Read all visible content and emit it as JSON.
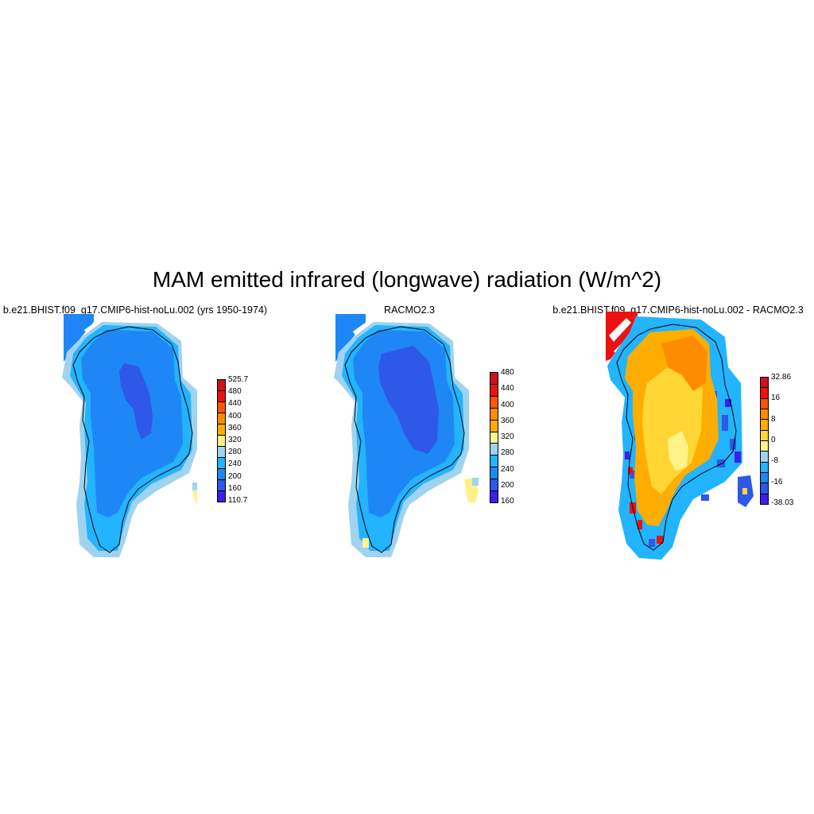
{
  "title": "MAM emitted infrared (longwave) radiation (W/m^2)",
  "panels": [
    {
      "title": "b.e21.BHIST.f09_g17.CMIP6-hist-noLu.002 (yrs 1950-1974)",
      "colorbar": {
        "labels": [
          "525.7",
          "480",
          "440",
          "400",
          "360",
          "320",
          "280",
          "240",
          "200",
          "160",
          "110.7"
        ],
        "colors": [
          "#c8141e",
          "#ee1111",
          "#ff5500",
          "#ff8c00",
          "#ffae00",
          "#fff28a",
          "#9fd3f0",
          "#22b4ff",
          "#1e87f5",
          "#2e58e8",
          "#3c1ef0"
        ]
      }
    },
    {
      "title": "RACMO2.3",
      "colorbar": {
        "labels": [
          "480",
          "440",
          "400",
          "360",
          "320",
          "280",
          "240",
          "200",
          "160"
        ],
        "colors": [
          "#c8141e",
          "#ee1111",
          "#ff5500",
          "#ff8c00",
          "#ffae00",
          "#fff28a",
          "#9fd3f0",
          "#22b4ff",
          "#1e87f5",
          "#2e58e8",
          "#3c1ef0"
        ]
      }
    },
    {
      "title": "b.e21.BHIST.f09_g17.CMIP6-hist-noLu.002 - RACMO2.3",
      "colorbar": {
        "labels": [
          "32.86",
          "16",
          "8",
          "0",
          "-8",
          "-16",
          "-38.03"
        ],
        "colors": [
          "#c8141e",
          "#ee1111",
          "#ff5500",
          "#ff8c00",
          "#ffae00",
          "#ffd633",
          "#fff28a",
          "#9fd3f0",
          "#22b4ff",
          "#1e87f5",
          "#2e58e8",
          "#3c1ef0"
        ]
      }
    }
  ]
}
